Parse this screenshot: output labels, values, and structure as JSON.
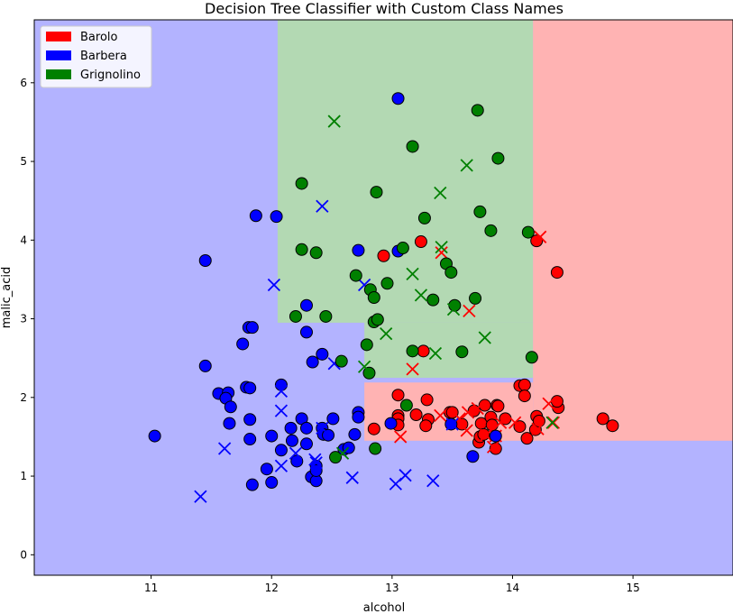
{
  "chart_data": {
    "type": "scatter",
    "title": "Decision Tree Classifier with Custom Class Names",
    "xlabel": "alcohol",
    "ylabel": "malic_acid",
    "xlim": [
      10.03,
      15.83
    ],
    "ylim": [
      -0.26,
      6.8
    ],
    "xticks": [
      11,
      12,
      13,
      14,
      15
    ],
    "yticks": [
      0,
      1,
      2,
      3,
      4,
      5,
      6
    ],
    "legend": {
      "placement": "top-left",
      "entries": [
        {
          "name": "Barolo",
          "color": "#ff0000"
        },
        {
          "name": "Barbera",
          "color": "#0000ff"
        },
        {
          "name": "Grignolino",
          "color": "#008000"
        }
      ]
    },
    "regions": [
      {
        "class": "Barbera",
        "fill": "#b3b3ff",
        "x": [
          10.03,
          15.83
        ],
        "y": [
          -0.26,
          6.8
        ]
      },
      {
        "class": "Grignolino",
        "fill": "#b3d9b3",
        "x": [
          12.05,
          14.17
        ],
        "y": [
          2.95,
          6.8
        ]
      },
      {
        "class": "Grignolino",
        "fill": "#b3d9b3",
        "x": [
          12.77,
          14.17
        ],
        "y": [
          2.25,
          2.95
        ]
      },
      {
        "class": "Barolo",
        "fill": "#ffb3b3",
        "x": [
          14.17,
          15.83
        ],
        "y": [
          1.45,
          6.8
        ]
      },
      {
        "class": "Barolo",
        "fill": "#ffb3b3",
        "x": [
          12.77,
          14.17
        ],
        "y": [
          1.45,
          2.19
        ]
      }
    ],
    "series": [
      {
        "name": "Barolo",
        "marker": "circle",
        "color": "#ff0000",
        "points": [
          [
            12.93,
            3.8
          ],
          [
            13.24,
            3.98
          ],
          [
            14.2,
            3.99
          ],
          [
            14.37,
            3.59
          ],
          [
            13.26,
            2.59
          ],
          [
            13.05,
            2.03
          ],
          [
            13.05,
            1.77
          ],
          [
            13.05,
            1.73
          ],
          [
            13.05,
            1.65
          ],
          [
            13.2,
            1.78
          ],
          [
            13.29,
            1.97
          ],
          [
            13.3,
            1.72
          ],
          [
            13.28,
            1.64
          ],
          [
            13.48,
            1.81
          ],
          [
            13.5,
            1.81
          ],
          [
            13.58,
            1.66
          ],
          [
            13.68,
            1.83
          ],
          [
            13.72,
            1.43
          ],
          [
            13.73,
            1.5
          ],
          [
            13.74,
            1.67
          ],
          [
            13.76,
            1.53
          ],
          [
            13.77,
            1.9
          ],
          [
            13.82,
            1.75
          ],
          [
            13.83,
            1.65
          ],
          [
            13.86,
            1.35
          ],
          [
            13.87,
            1.9
          ],
          [
            13.88,
            1.89
          ],
          [
            13.94,
            1.73
          ],
          [
            14.06,
            1.63
          ],
          [
            14.06,
            2.15
          ],
          [
            14.1,
            2.16
          ],
          [
            14.1,
            2.02
          ],
          [
            14.12,
            1.48
          ],
          [
            14.19,
            1.59
          ],
          [
            14.2,
            1.76
          ],
          [
            14.22,
            1.7
          ],
          [
            14.38,
            1.87
          ],
          [
            14.37,
            1.95
          ],
          [
            14.75,
            1.73
          ],
          [
            14.83,
            1.64
          ],
          [
            12.85,
            1.6
          ]
        ]
      },
      {
        "name": "Barolo",
        "marker": "x",
        "color": "#ff0000",
        "points": [
          [
            14.23,
            4.04
          ],
          [
            13.41,
            3.84
          ],
          [
            13.64,
            3.1
          ],
          [
            13.17,
            2.36
          ],
          [
            13.07,
            1.5
          ],
          [
            13.4,
            1.77
          ],
          [
            13.56,
            1.73
          ],
          [
            13.63,
            1.81
          ],
          [
            13.71,
            1.86
          ],
          [
            13.78,
            1.52
          ],
          [
            13.86,
            1.51
          ],
          [
            13.9,
            1.68
          ],
          [
            14.02,
            1.68
          ],
          [
            14.21,
            1.6
          ],
          [
            14.3,
            1.92
          ],
          [
            14.34,
            1.68
          ],
          [
            13.84,
            1.37
          ],
          [
            13.62,
            1.58
          ]
        ]
      },
      {
        "name": "Barbera",
        "marker": "circle",
        "color": "#0000ff",
        "points": [
          [
            13.05,
            5.8
          ],
          [
            11.87,
            4.31
          ],
          [
            12.04,
            4.3
          ],
          [
            11.45,
            3.74
          ],
          [
            12.29,
            3.17
          ],
          [
            12.72,
            3.87
          ],
          [
            11.81,
            2.89
          ],
          [
            11.76,
            2.68
          ],
          [
            12.29,
            2.83
          ],
          [
            12.42,
            2.55
          ],
          [
            12.34,
            2.45
          ],
          [
            11.45,
            2.4
          ],
          [
            11.56,
            2.05
          ],
          [
            11.64,
            2.06
          ],
          [
            11.62,
            1.99
          ],
          [
            11.65,
            1.67
          ],
          [
            11.66,
            1.88
          ],
          [
            11.79,
            2.13
          ],
          [
            11.82,
            2.12
          ],
          [
            11.84,
            2.89
          ],
          [
            11.82,
            1.72
          ],
          [
            11.82,
            1.47
          ],
          [
            12.08,
            2.16
          ],
          [
            12.08,
            1.33
          ],
          [
            12.17,
            1.45
          ],
          [
            12.16,
            1.61
          ],
          [
            12.21,
            1.19
          ],
          [
            12.25,
            1.73
          ],
          [
            12.29,
            1.61
          ],
          [
            12.29,
            1.41
          ],
          [
            12.33,
            0.99
          ],
          [
            12.37,
            0.94
          ],
          [
            12.37,
            1.13
          ],
          [
            12.37,
            1.07
          ],
          [
            12.42,
            1.61
          ],
          [
            12.43,
            1.53
          ],
          [
            12.47,
            1.52
          ],
          [
            12.51,
            1.73
          ],
          [
            12.6,
            1.34
          ],
          [
            12.64,
            1.36
          ],
          [
            12.69,
            1.53
          ],
          [
            12.72,
            1.81
          ],
          [
            12.72,
            1.75
          ],
          [
            12.99,
            1.67
          ],
          [
            13.05,
            3.86
          ],
          [
            13.49,
            1.66
          ],
          [
            13.67,
            1.25
          ],
          [
            13.86,
            1.51
          ],
          [
            11.03,
            1.51
          ],
          [
            11.84,
            0.89
          ],
          [
            11.96,
            1.09
          ],
          [
            12.0,
            1.51
          ],
          [
            12.0,
            0.92
          ]
        ]
      },
      {
        "name": "Barbera",
        "marker": "x",
        "color": "#0000ff",
        "points": [
          [
            12.42,
            4.43
          ],
          [
            12.02,
            3.43
          ],
          [
            12.77,
            3.43
          ],
          [
            12.52,
            2.43
          ],
          [
            12.08,
            2.08
          ],
          [
            12.08,
            1.83
          ],
          [
            12.08,
            1.13
          ],
          [
            11.61,
            1.35
          ],
          [
            11.41,
            0.74
          ],
          [
            12.36,
            1.21
          ],
          [
            12.42,
            1.61
          ],
          [
            12.67,
            0.98
          ],
          [
            13.03,
            0.9
          ],
          [
            13.11,
            1.01
          ],
          [
            13.34,
            0.94
          ],
          [
            12.2,
            1.29
          ],
          [
            13.5,
            1.66
          ],
          [
            12.37,
            1.17
          ]
        ]
      },
      {
        "name": "Grignolino",
        "marker": "circle",
        "color": "#008000",
        "points": [
          [
            13.71,
            5.65
          ],
          [
            13.17,
            5.19
          ],
          [
            13.88,
            5.04
          ],
          [
            12.25,
            4.72
          ],
          [
            12.87,
            4.61
          ],
          [
            13.27,
            4.28
          ],
          [
            13.73,
            4.36
          ],
          [
            13.82,
            4.12
          ],
          [
            14.13,
            4.1
          ],
          [
            12.25,
            3.88
          ],
          [
            12.37,
            3.84
          ],
          [
            13.09,
            3.9
          ],
          [
            12.7,
            3.55
          ],
          [
            12.82,
            3.37
          ],
          [
            12.85,
            3.27
          ],
          [
            12.96,
            3.45
          ],
          [
            13.45,
            3.7
          ],
          [
            13.49,
            3.59
          ],
          [
            13.34,
            3.24
          ],
          [
            13.69,
            3.26
          ],
          [
            13.52,
            3.17
          ],
          [
            12.2,
            3.03
          ],
          [
            12.45,
            3.03
          ],
          [
            12.85,
            2.96
          ],
          [
            12.88,
            2.99
          ],
          [
            12.79,
            2.67
          ],
          [
            13.17,
            2.59
          ],
          [
            13.58,
            2.58
          ],
          [
            14.16,
            2.51
          ],
          [
            12.81,
            2.31
          ],
          [
            13.12,
            1.9
          ],
          [
            12.58,
            2.46
          ],
          [
            12.53,
            1.24
          ],
          [
            12.86,
            1.35
          ]
        ]
      },
      {
        "name": "Grignolino",
        "marker": "x",
        "color": "#008000",
        "points": [
          [
            12.52,
            5.51
          ],
          [
            13.62,
            4.95
          ],
          [
            13.4,
            4.6
          ],
          [
            13.41,
            3.91
          ],
          [
            13.17,
            3.57
          ],
          [
            13.24,
            3.3
          ],
          [
            13.51,
            3.12
          ],
          [
            13.36,
            2.56
          ],
          [
            12.95,
            2.81
          ],
          [
            13.77,
            2.76
          ],
          [
            12.77,
            2.39
          ],
          [
            12.59,
            1.29
          ],
          [
            14.33,
            1.68
          ]
        ]
      }
    ]
  }
}
